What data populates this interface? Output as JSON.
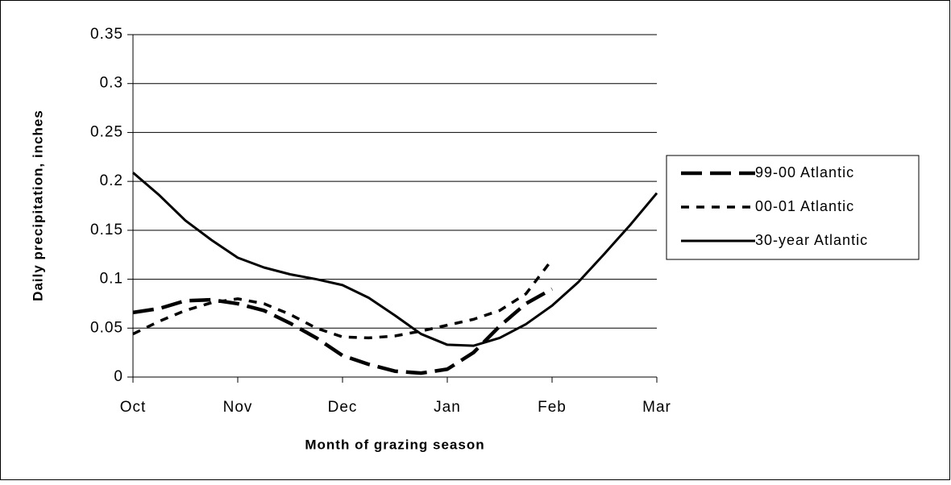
{
  "chart_data": {
    "type": "line",
    "x_label": "Month of grazing season",
    "y_label": "Daily precipitation, inches",
    "categories": [
      "Oct",
      null,
      null,
      null,
      "Nov",
      null,
      null,
      null,
      "Dec",
      null,
      null,
      null,
      "Jan",
      null,
      null,
      null,
      "Feb",
      null,
      null,
      null,
      "Mar"
    ],
    "series": [
      {
        "name": "99-00 Atlantic",
        "color": "#000000",
        "line_style": "long-dash",
        "values": [
          0.066,
          0.07,
          0.078,
          0.079,
          0.075,
          0.068,
          0.055,
          0.04,
          0.022,
          0.013,
          0.006,
          0.004,
          0.008,
          0.025,
          0.052,
          0.075,
          0.09,
          null,
          null,
          null,
          null
        ]
      },
      {
        "name": "00-01 Atlantic",
        "color": "#000000",
        "line_style": "short-dash",
        "values": [
          0.044,
          0.057,
          0.068,
          0.076,
          0.08,
          0.075,
          0.064,
          0.05,
          0.041,
          0.04,
          0.042,
          0.047,
          0.053,
          0.059,
          0.068,
          0.085,
          0.12,
          null,
          null,
          null,
          null
        ]
      },
      {
        "name": "30-year Atlantic",
        "color": "#000000",
        "line_style": "solid",
        "values": [
          0.209,
          0.186,
          0.16,
          0.14,
          0.122,
          0.112,
          0.105,
          0.1,
          0.094,
          0.081,
          0.063,
          0.044,
          0.033,
          0.032,
          0.04,
          0.054,
          0.073,
          0.097,
          0.126,
          0.156,
          0.188
        ]
      }
    ],
    "ylim": [
      0,
      0.35
    ],
    "yticks": [
      0,
      0.05,
      0.1,
      0.15,
      0.2,
      0.25,
      0.3,
      0.35
    ],
    "grid": true,
    "legend": "right"
  }
}
